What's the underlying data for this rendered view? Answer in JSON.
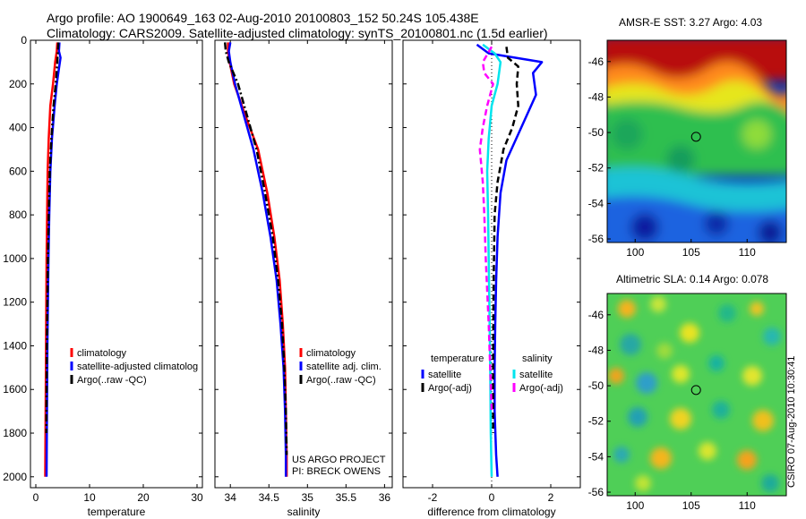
{
  "title_line1": "Argo profile: AO 1900649_163 02-Aug-2010 20100803_152 50.24S 105.438E",
  "title_line2": "Climatology: CARS2009. Satellite-adjusted climatology: synTS_20100801.nc (1.5d earlier)",
  "credit": "CSIRO 07-Aug-2010 10:30:41",
  "project_lines": [
    "US ARGO PROJECT",
    "PI: BRECK OWENS"
  ],
  "colors": {
    "climatology": "#ff0000",
    "satellite": "#0000ff",
    "argo": "#000000",
    "satellite_salinity": "#00e5ee",
    "argo_salinity_adj": "#ff00ff",
    "float_marker": "#000000"
  },
  "maps": [
    {
      "title": "AMSR-E SST: 3.27 Argo: 4.03",
      "lon_ticks": [
        "100",
        "105",
        "110"
      ],
      "lat_ticks": [
        "-46",
        "-48",
        "-50",
        "-52",
        "-54",
        "-56"
      ],
      "float_lat": -50.24,
      "float_lon": 105.438
    },
    {
      "title": "Altimetric SLA: 0.14 Argo: 0.078",
      "lon_ticks": [
        "100",
        "105",
        "110"
      ],
      "lat_ticks": [
        "-46",
        "-48",
        "-50",
        "-52",
        "-54",
        "-56"
      ],
      "float_lat": -50.24,
      "float_lon": 105.438
    }
  ],
  "chart_data": [
    {
      "type": "line",
      "xlabel": "temperature",
      "ylabel": "",
      "xlim": [
        -1,
        31
      ],
      "ylim": [
        0,
        2050
      ],
      "y_inverted": true,
      "x_ticks": [
        "0",
        "10",
        "20",
        "30"
      ],
      "y_ticks": [
        "0",
        "200",
        "400",
        "600",
        "800",
        "1000",
        "1200",
        "1400",
        "1600",
        "1800",
        "2000"
      ],
      "legend": {
        "position": "lower-center",
        "entries": [
          "climatology",
          "satellite-adjusted climatolog",
          "Argo(..raw -QC)"
        ]
      },
      "series": [
        {
          "name": "climatology",
          "style": "solid",
          "color_key": "climatology",
          "x": [
            4.0,
            3.9,
            3.6,
            3.2,
            2.7,
            2.4,
            2.2,
            2.1,
            2.0,
            1.95,
            1.9,
            1.85,
            1.8,
            1.75
          ],
          "y": [
            10,
            50,
            100,
            200,
            300,
            450,
            600,
            800,
            1000,
            1200,
            1400,
            1600,
            1800,
            2000
          ]
        },
        {
          "name": "satellite-adjusted climatolog",
          "style": "solid",
          "color_key": "satellite",
          "x": [
            4.4,
            4.3,
            4.6,
            4.3,
            3.9,
            3.5,
            3.0,
            2.7,
            2.5,
            2.35,
            2.25,
            2.15,
            2.1,
            2.05,
            2.0
          ],
          "y": [
            10,
            50,
            80,
            130,
            200,
            300,
            450,
            600,
            800,
            1000,
            1200,
            1400,
            1600,
            1800,
            2000
          ]
        },
        {
          "name": "Argo(..raw -QC)",
          "style": "dashdot",
          "color_key": "argo",
          "x": [
            4.2,
            4.1,
            4.0,
            3.7,
            3.3,
            2.9,
            2.6,
            2.4,
            2.25,
            2.15,
            2.05,
            2.0,
            1.95
          ],
          "y": [
            10,
            50,
            100,
            200,
            300,
            450,
            600,
            800,
            1000,
            1200,
            1400,
            1600,
            1800
          ]
        }
      ]
    },
    {
      "type": "line",
      "xlabel": "salinity",
      "ylabel": "",
      "xlim": [
        33.8,
        36.1
      ],
      "ylim": [
        0,
        2050
      ],
      "y_inverted": true,
      "x_ticks": [
        "34",
        "34.5",
        "35",
        "35.5",
        "36"
      ],
      "x_tick_values": [
        34,
        34.5,
        35,
        35.5,
        36
      ],
      "legend": {
        "position": "lower-center",
        "entries": [
          "climatology",
          "satellite adj. clim.",
          "Argo(..raw -QC)"
        ]
      },
      "series": [
        {
          "name": "climatology",
          "style": "solid",
          "color_key": "climatology",
          "x": [
            33.97,
            33.97,
            33.99,
            34.05,
            34.2,
            34.36,
            34.48,
            34.57,
            34.64,
            34.68,
            34.71,
            34.72,
            34.73,
            34.73
          ],
          "y": [
            10,
            50,
            100,
            200,
            350,
            500,
            700,
            900,
            1100,
            1300,
            1500,
            1700,
            1900,
            2000
          ]
        },
        {
          "name": "satellite adj. clim.",
          "style": "solid",
          "color_key": "satellite",
          "x": [
            34.0,
            33.98,
            34.0,
            34.06,
            34.18,
            34.3,
            34.42,
            34.52,
            34.6,
            34.65,
            34.69,
            34.71,
            34.72,
            34.72
          ],
          "y": [
            10,
            50,
            100,
            200,
            350,
            500,
            700,
            900,
            1100,
            1300,
            1500,
            1700,
            1900,
            2000
          ]
        },
        {
          "name": "Argo(..raw -QC)",
          "style": "dashdot",
          "color_key": "argo",
          "x": [
            33.93,
            33.94,
            33.98,
            34.1,
            34.22,
            34.34,
            34.45,
            34.55,
            34.62,
            34.67,
            34.7,
            34.72,
            34.73
          ],
          "y": [
            10,
            50,
            100,
            200,
            350,
            500,
            700,
            900,
            1100,
            1300,
            1500,
            1700,
            1900
          ]
        }
      ]
    },
    {
      "type": "line",
      "xlabel": "difference from climatology",
      "ylabel": "",
      "xlim": [
        -3,
        3
      ],
      "ylim": [
        0,
        2050
      ],
      "y_inverted": true,
      "x_ticks": [
        "-2",
        "0",
        "2"
      ],
      "x_tick_values": [
        -2,
        0,
        2
      ],
      "legend": {
        "position": "lower-center",
        "temperature_header": "temperature",
        "salinity_header": "salinity",
        "entries": [
          "satellite",
          "Argo(-adj)",
          "satellite",
          "Argo(-adj)"
        ]
      },
      "series": [
        {
          "name": "satellite",
          "group": "temperature",
          "style": "solid",
          "color_key": "satellite",
          "x": [
            -0.5,
            -0.1,
            0.8,
            1.7,
            1.4,
            1.5,
            1.0,
            0.5,
            0.3,
            0.2,
            0.15,
            0.12,
            0.1,
            0.1,
            0.15,
            0.2
          ],
          "y": [
            20,
            60,
            80,
            100,
            150,
            250,
            400,
            550,
            700,
            900,
            1100,
            1300,
            1500,
            1700,
            1900,
            2000
          ]
        },
        {
          "name": "Argo(-adj)",
          "group": "temperature",
          "style": "dashed",
          "color_key": "argo",
          "x": [
            0.5,
            0.55,
            0.9,
            0.85,
            0.9,
            0.7,
            0.4,
            0.2,
            0.1,
            0.08,
            0.06,
            0.05,
            0.05
          ],
          "y": [
            30,
            80,
            120,
            200,
            300,
            400,
            500,
            650,
            800,
            1000,
            1200,
            1500,
            1800
          ]
        },
        {
          "name": "satellite",
          "group": "salinity",
          "style": "solid",
          "color_key": "satellite_salinity",
          "x": [
            -0.3,
            0.1,
            0.3,
            0.2,
            0.0,
            -0.1,
            -0.15,
            -0.12,
            -0.1,
            -0.08,
            -0.05,
            -0.03,
            0.0
          ],
          "y": [
            20,
            60,
            100,
            200,
            300,
            450,
            600,
            800,
            1000,
            1200,
            1500,
            1800,
            2000
          ]
        },
        {
          "name": "Argo(-adj)",
          "group": "salinity",
          "style": "dashed",
          "color_key": "argo_salinity_adj",
          "x": [
            0.0,
            -0.3,
            -0.25,
            0.05,
            -0.15,
            -0.3,
            -0.4,
            -0.3,
            -0.25,
            -0.2,
            -0.1,
            0.0
          ],
          "y": [
            30,
            100,
            150,
            200,
            300,
            400,
            500,
            650,
            800,
            1000,
            1300,
            1700
          ]
        }
      ]
    }
  ]
}
